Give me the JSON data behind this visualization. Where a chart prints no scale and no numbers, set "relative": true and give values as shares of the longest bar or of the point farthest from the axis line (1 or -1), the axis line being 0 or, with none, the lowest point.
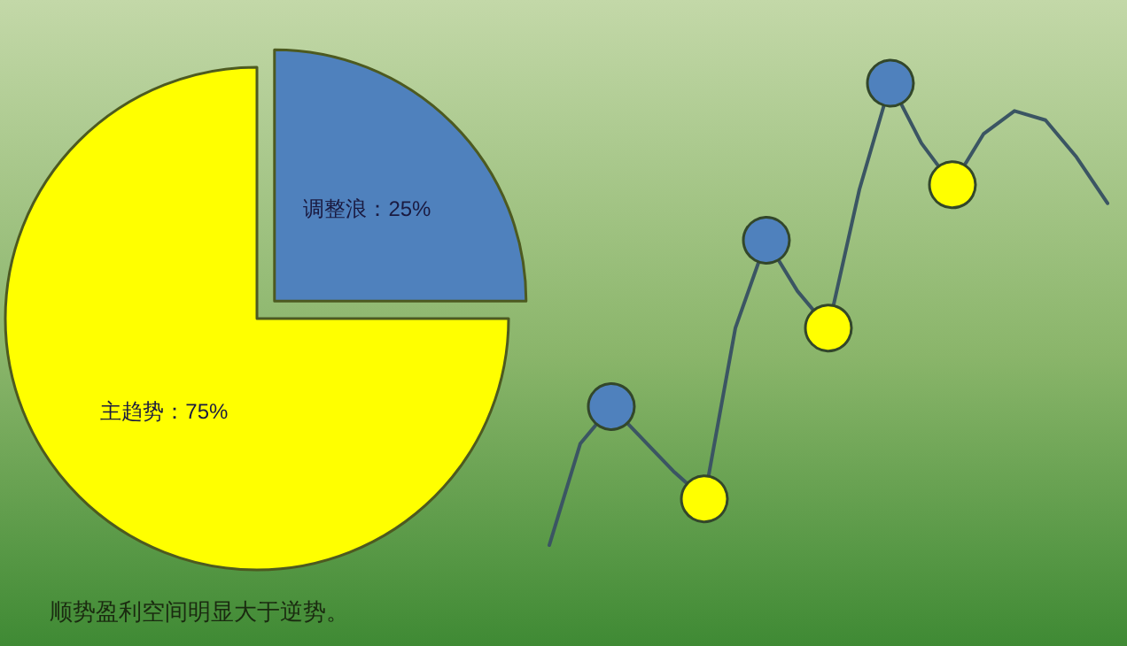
{
  "chart_data": [
    {
      "type": "pie",
      "categories": [
        "调整浪",
        "主趋势"
      ],
      "values": [
        25,
        75
      ],
      "colors": [
        "#4f81bd",
        "#ffff00"
      ],
      "value_labels": [
        "25%",
        "75%"
      ],
      "annotations": [
        "顺势盈利空间明显大于逆势。"
      ],
      "legend": false
    },
    {
      "type": "line",
      "relative": true,
      "categories": [
        null,
        null,
        null,
        null,
        null,
        null,
        null,
        null,
        null,
        null,
        null,
        null,
        null,
        null,
        null,
        null,
        null,
        null,
        null
      ],
      "legend": false,
      "series": [
        {
          "color": "#3b5563",
          "values": [
            0,
            0.22,
            0.3,
            0.23,
            0.16,
            0.1,
            0.47,
            0.66,
            0.55,
            0.47,
            0.77,
            1,
            0.87,
            0.78,
            0.89,
            0.94,
            0.92,
            0.84,
            0.74
          ],
          "colors": [
            null,
            null,
            "#4f81bd",
            null,
            null,
            "#ffff00",
            null,
            "#4f81bd",
            null,
            "#ffff00",
            null,
            "#4f81bd",
            null,
            "#ffff00",
            null,
            null,
            null,
            null,
            null
          ]
        }
      ]
    }
  ]
}
